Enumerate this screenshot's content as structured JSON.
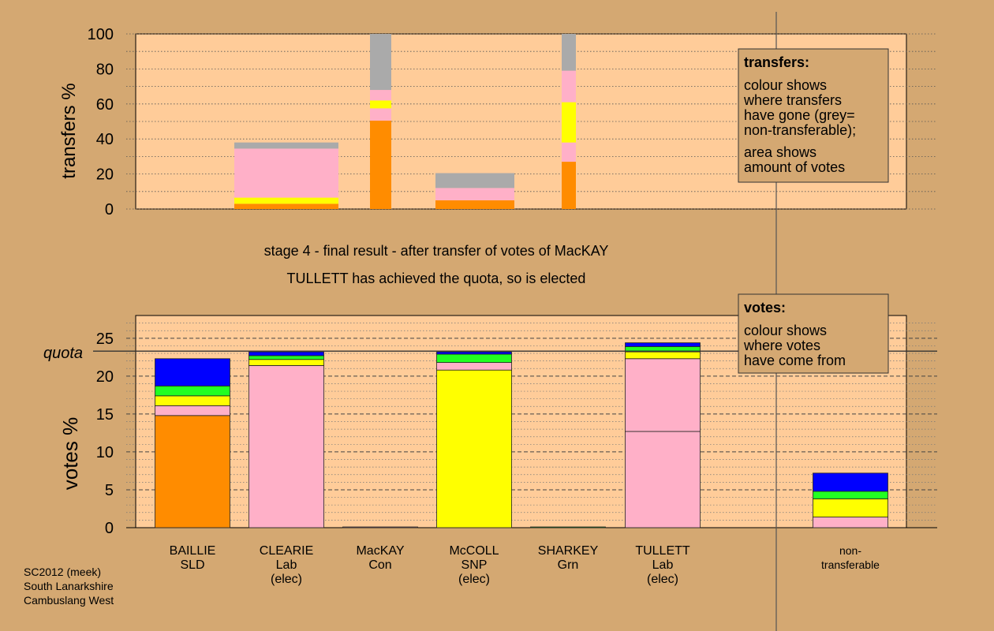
{
  "colors": {
    "background": "#d4a872",
    "plot_area": "#ffcc99",
    "orange": "#ff8c00",
    "yellow": "#ffff00",
    "pink": "#ffb0c8",
    "green": "#22ff22",
    "blue": "#0000ff",
    "grey": "#aaaaaa"
  },
  "chart_data": [
    {
      "type": "bar",
      "stacked": true,
      "ylabel": "transfers %",
      "ylim": [
        0,
        100
      ],
      "yticks": [
        "0",
        "20",
        "40",
        "60",
        "80",
        "100"
      ],
      "ytick_values": [
        0,
        20,
        40,
        60,
        80,
        100
      ],
      "bars": [
        {
          "candidate": "CLEARIE",
          "segments": [
            {
              "color": "orange",
              "value": 3
            },
            {
              "color": "yellow",
              "value": 3.5
            },
            {
              "color": "pink",
              "value": 28
            },
            {
              "color": "grey",
              "value": 3.5
            }
          ]
        },
        {
          "candidate": "MacKAY",
          "segments": [
            {
              "color": "orange",
              "value": 50.5
            },
            {
              "color": "pink",
              "value": 7
            },
            {
              "color": "yellow",
              "value": 4.5
            },
            {
              "color": "pink",
              "value": 6
            },
            {
              "color": "grey",
              "value": 32
            }
          ]
        },
        {
          "candidate": "McCOLL",
          "segments": [
            {
              "color": "orange",
              "value": 5
            },
            {
              "color": "pink",
              "value": 7
            },
            {
              "color": "grey",
              "value": 8.5
            }
          ]
        },
        {
          "candidate": "TULLETT",
          "segments": [
            {
              "color": "orange",
              "value": 27
            },
            {
              "color": "pink",
              "value": 11
            },
            {
              "color": "yellow",
              "value": 23
            },
            {
              "color": "pink",
              "value": 18
            },
            {
              "color": "grey",
              "value": 21
            }
          ]
        }
      ],
      "legend": {
        "title": "transfers:",
        "lines1": [
          "colour shows",
          "where transfers",
          "have gone (grey=",
          "non-transferable);"
        ],
        "lines2": [
          "area shows",
          "amount of votes"
        ]
      }
    },
    {
      "type": "bar",
      "stacked": true,
      "ylabel": "votes %",
      "ylim": [
        0,
        28
      ],
      "yticks": [
        "0",
        "5",
        "10",
        "15",
        "20",
        "25"
      ],
      "ytick_values": [
        0,
        5,
        10,
        15,
        20,
        25
      ],
      "quota": 23.3,
      "quota_label": "quota",
      "categories": [
        {
          "name": "BAILLIE",
          "party": "SLD",
          "status": ""
        },
        {
          "name": "CLEARIE",
          "party": "Lab",
          "status": "(elec)"
        },
        {
          "name": "MacKAY",
          "party": "Con",
          "status": ""
        },
        {
          "name": "McCOLL",
          "party": "SNP",
          "status": "(elec)"
        },
        {
          "name": "SHARKEY",
          "party": "Grn",
          "status": ""
        },
        {
          "name": "TULLETT",
          "party": "Lab",
          "status": "(elec)"
        },
        {
          "name": "",
          "party": "",
          "status": ""
        },
        {
          "name": "non-",
          "party": "transferable",
          "status": ""
        }
      ],
      "series": [
        [
          {
            "color": "orange",
            "value": 14.8
          },
          {
            "color": "pink",
            "value": 1.3
          },
          {
            "color": "yellow",
            "value": 1.3
          },
          {
            "color": "green",
            "value": 1.3
          },
          {
            "color": "blue",
            "value": 3.6
          }
        ],
        [
          {
            "color": "pink",
            "value": 21.4
          },
          {
            "color": "yellow",
            "value": 0.8
          },
          {
            "color": "green",
            "value": 0.5
          },
          {
            "color": "blue",
            "value": 0.5
          }
        ],
        [
          {
            "color": "pink",
            "value": 0.1
          }
        ],
        [
          {
            "color": "yellow",
            "value": 20.8
          },
          {
            "color": "pink",
            "value": 1
          },
          {
            "color": "green",
            "value": 1.1
          },
          {
            "color": "blue",
            "value": 0.3
          }
        ],
        [
          {
            "color": "green",
            "value": 0.1
          }
        ],
        [
          {
            "color": "pink",
            "value": 12.7
          },
          {
            "color": "pink",
            "value": 9.6
          },
          {
            "color": "yellow",
            "value": 0.9
          },
          {
            "color": "green",
            "value": 0.7
          },
          {
            "color": "blue",
            "value": 0.5
          }
        ],
        [],
        [
          {
            "color": "pink",
            "value": 1.4
          },
          {
            "color": "yellow",
            "value": 2.4
          },
          {
            "color": "green",
            "value": 1
          },
          {
            "color": "blue",
            "value": 2.4
          }
        ]
      ],
      "legend": {
        "title": "votes:",
        "lines1": [
          "colour shows",
          "where votes",
          "have come from"
        ]
      }
    }
  ],
  "stage_text": {
    "line1": "stage 4 - final result - after transfer of votes of MacKAY",
    "line2": "TULLETT has achieved the quota, so is elected"
  },
  "footer": {
    "line1": "SC2012 (meek)",
    "line2": "South Lanarkshire",
    "line3": "Cambuslang West"
  }
}
